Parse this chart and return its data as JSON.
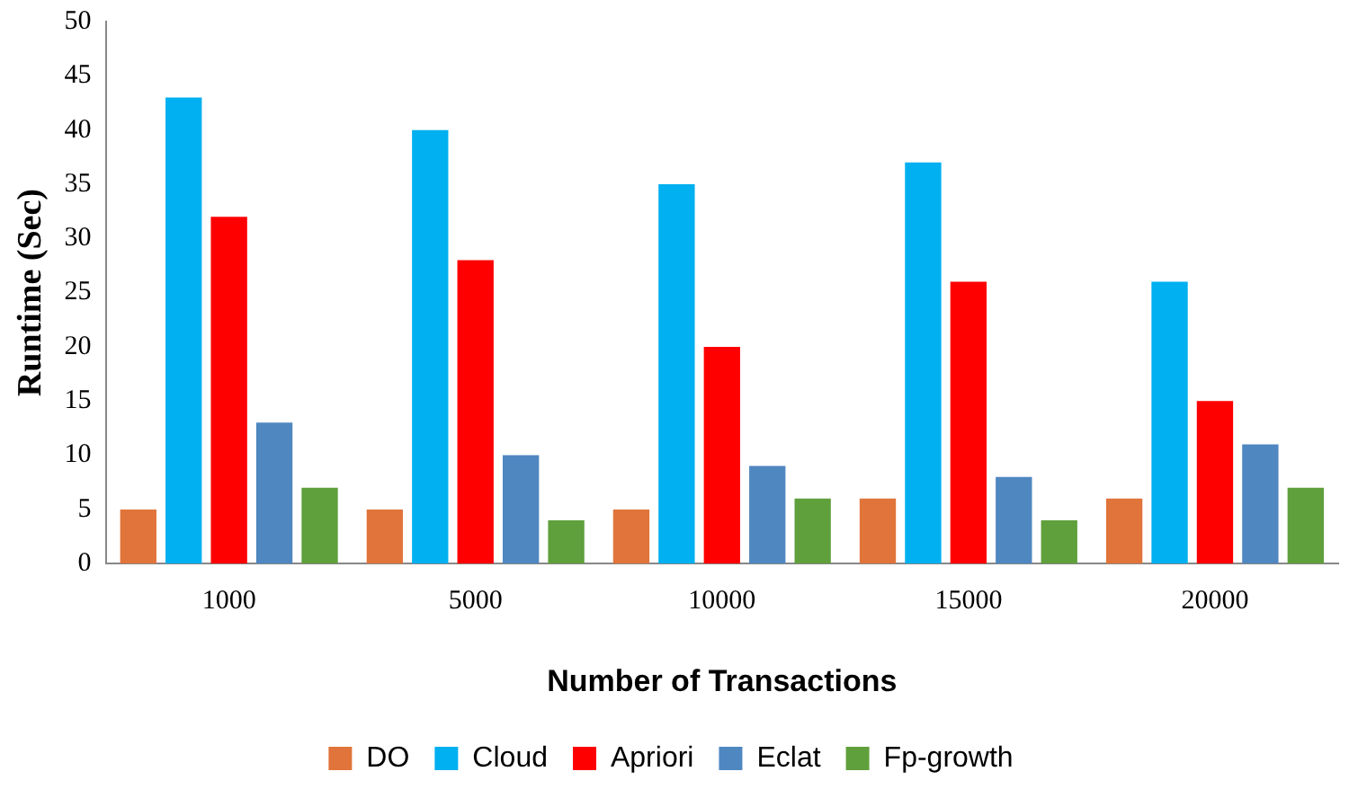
{
  "chart_data": {
    "type": "bar",
    "xlabel": "Number of Transactions",
    "ylabel": "Runtime (Sec)",
    "categories": [
      "1000",
      "5000",
      "10000",
      "15000",
      "20000"
    ],
    "series": [
      {
        "name": "DO",
        "color": "#e0743a",
        "values": [
          5,
          5,
          5,
          6,
          6
        ]
      },
      {
        "name": "Cloud",
        "color": "#00b0f0",
        "values": [
          43,
          40,
          35,
          37,
          26
        ]
      },
      {
        "name": "Apriori",
        "color": "#ff0000",
        "values": [
          32,
          28,
          20,
          26,
          15
        ]
      },
      {
        "name": "Eclat",
        "color": "#4f87c0",
        "values": [
          13,
          10,
          9,
          8,
          11
        ]
      },
      {
        "name": "Fp-growth",
        "color": "#5fa03c",
        "values": [
          7,
          4,
          6,
          4,
          7
        ]
      }
    ],
    "ylim": [
      0,
      50
    ],
    "yticks": [
      0,
      5,
      10,
      15,
      20,
      25,
      30,
      35,
      40,
      45,
      50
    ],
    "grid": false,
    "legend": "bottom"
  }
}
